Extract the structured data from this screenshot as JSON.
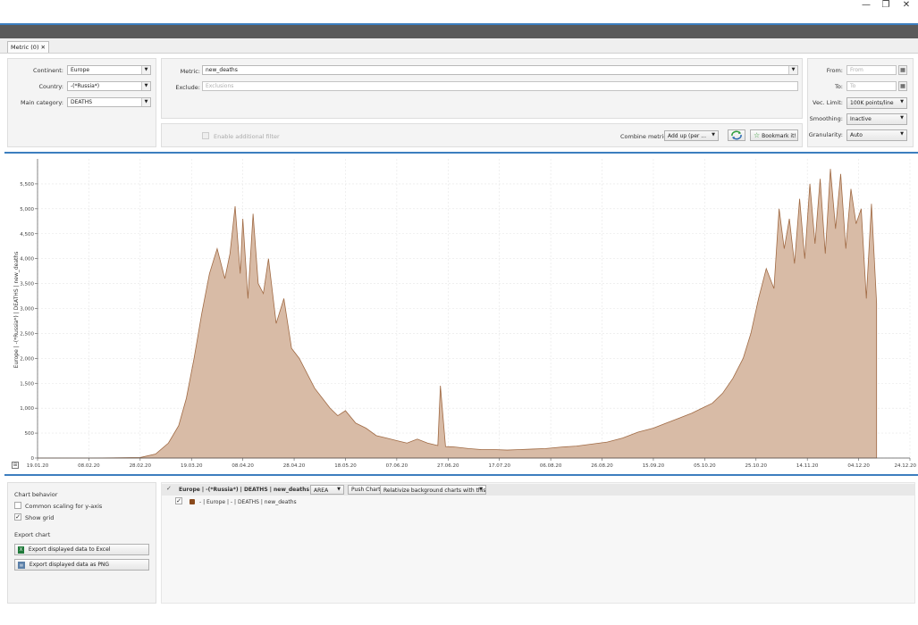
{
  "window": {
    "minimize": "—",
    "restore": "❐",
    "close": "✕"
  },
  "tab": {
    "label": "Metric (0) ✕"
  },
  "filters": {
    "continent_label": "Continent:",
    "continent_value": "Europe",
    "country_label": "Country:",
    "country_value": "-(*Russia*)",
    "main_category_label": "Main category:",
    "main_category_value": "DEATHS"
  },
  "metric": {
    "metric_label": "Metric:",
    "metric_value": "new_deaths",
    "exclude_label": "Exclude:",
    "exclude_placeholder": "Exclusions",
    "additional_filter_label": "Enable additional filter",
    "combine_label": "Combine metrics:",
    "combine_value": "Add up (per ...",
    "bookmark_label": "Bookmark it!"
  },
  "range": {
    "from_label": "From:",
    "from_placeholder": "From",
    "to_label": "To:",
    "to_placeholder": "To",
    "vec_limit_label": "Vec. Limit:",
    "vec_limit_value": "100K points/line",
    "smoothing_label": "Smoothing:",
    "smoothing_value": "Inactive",
    "granularity_label": "Granularity:",
    "granularity_value": "Auto"
  },
  "chart_data": {
    "type": "area",
    "title": "",
    "xlabel": "",
    "ylabel": "Europe | -(*Russia*) | DEATHS | new_deaths",
    "ylim": [
      0,
      6000
    ],
    "yticks": [
      0,
      500,
      1000,
      1500,
      2000,
      2500,
      3000,
      3500,
      4000,
      4500,
      5000,
      5500
    ],
    "ytick_labels": [
      "0",
      "500",
      "1,000",
      "1,500",
      "2,000",
      "2,500",
      "3,000",
      "3,500",
      "4,000",
      "4,500",
      "5,000",
      "5,500"
    ],
    "xlim": [
      "2020-01-19",
      "2020-12-24"
    ],
    "xticks": [
      "2020-01-19",
      "2020-02-08",
      "2020-02-28",
      "2020-03-19",
      "2020-04-08",
      "2020-04-28",
      "2020-05-18",
      "2020-06-07",
      "2020-06-27",
      "2020-07-17",
      "2020-08-06",
      "2020-08-26",
      "2020-09-15",
      "2020-10-05",
      "2020-10-25",
      "2020-11-14",
      "2020-12-04",
      "2020-12-24"
    ],
    "xtick_labels": [
      "19.01.20",
      "08.02.20",
      "28.02.20",
      "19.03.20",
      "08.04.20",
      "28.04.20",
      "18.05.20",
      "07.06.20",
      "27.06.20",
      "17.07.20",
      "06.08.20",
      "26.08.20",
      "15.09.20",
      "05.10.20",
      "25.10.20",
      "14.11.20",
      "04.12.20",
      "24.12.20"
    ],
    "grid": true,
    "color": "#a06a44",
    "fill": "#d8bba6",
    "series": [
      {
        "x": [
          "2020-01-19",
          "2020-02-08",
          "2020-02-28",
          "2020-03-05",
          "2020-03-10",
          "2020-03-14",
          "2020-03-17",
          "2020-03-20",
          "2020-03-23",
          "2020-03-26",
          "2020-03-29",
          "2020-04-01",
          "2020-04-03",
          "2020-04-05",
          "2020-04-07",
          "2020-04-08",
          "2020-04-10",
          "2020-04-12",
          "2020-04-14",
          "2020-04-16",
          "2020-04-18",
          "2020-04-21",
          "2020-04-24",
          "2020-04-27",
          "2020-04-30",
          "2020-05-03",
          "2020-05-06",
          "2020-05-09",
          "2020-05-12",
          "2020-05-15",
          "2020-05-18",
          "2020-05-22",
          "2020-05-26",
          "2020-05-30",
          "2020-06-03",
          "2020-06-07",
          "2020-06-11",
          "2020-06-15",
          "2020-06-19",
          "2020-06-23",
          "2020-06-24",
          "2020-06-26",
          "2020-06-30",
          "2020-07-05",
          "2020-07-10",
          "2020-07-15",
          "2020-07-20",
          "2020-07-25",
          "2020-07-30",
          "2020-08-04",
          "2020-08-10",
          "2020-08-16",
          "2020-08-22",
          "2020-08-28",
          "2020-09-03",
          "2020-09-09",
          "2020-09-15",
          "2020-09-20",
          "2020-09-25",
          "2020-09-30",
          "2020-10-04",
          "2020-10-08",
          "2020-10-12",
          "2020-10-16",
          "2020-10-20",
          "2020-10-23",
          "2020-10-26",
          "2020-10-29",
          "2020-11-01",
          "2020-11-03",
          "2020-11-05",
          "2020-11-07",
          "2020-11-09",
          "2020-11-11",
          "2020-11-13",
          "2020-11-15",
          "2020-11-17",
          "2020-11-19",
          "2020-11-21",
          "2020-11-23",
          "2020-11-25",
          "2020-11-27",
          "2020-11-29",
          "2020-12-01",
          "2020-12-03",
          "2020-12-05",
          "2020-12-07",
          "2020-12-09",
          "2020-12-11"
        ],
        "values": [
          0,
          0,
          10,
          80,
          300,
          650,
          1200,
          2000,
          2900,
          3700,
          4200,
          3600,
          4100,
          5050,
          3700,
          4800,
          3200,
          4900,
          3500,
          3300,
          4000,
          2700,
          3200,
          2200,
          2000,
          1700,
          1400,
          1200,
          1000,
          850,
          950,
          700,
          600,
          450,
          400,
          350,
          300,
          380,
          300,
          250,
          1450,
          230,
          220,
          190,
          170,
          170,
          160,
          170,
          180,
          190,
          220,
          240,
          280,
          320,
          400,
          520,
          600,
          700,
          800,
          900,
          1000,
          1100,
          1300,
          1600,
          2000,
          2500,
          3200,
          3800,
          3400,
          5000,
          4200,
          4800,
          3900,
          5200,
          4000,
          5500,
          4300,
          5600,
          4100,
          5800,
          4600,
          5700,
          4200,
          5400,
          4700,
          5000,
          3200,
          5100,
          3100
        ]
      }
    ]
  },
  "chart_behavior": {
    "title": "Chart behavior",
    "common_scaling_label": "Common scaling for y-axis",
    "common_scaling_checked": false,
    "show_grid_label": "Show grid",
    "show_grid_checked": true
  },
  "export": {
    "title": "Export chart",
    "excel_label": "Export displayed data to Excel",
    "png_label": "Export displayed data as PNG"
  },
  "series_panel": {
    "header_label": "Europe | -(*Russia*) | DEATHS | new_deaths",
    "type_value": "AREA",
    "push_chart_label": "Push Chart",
    "relativize_label": "Relativize background charts with this",
    "line_label": "- | Europe | - | DEATHS | new_deaths",
    "line_color": "#8a4a1c"
  }
}
